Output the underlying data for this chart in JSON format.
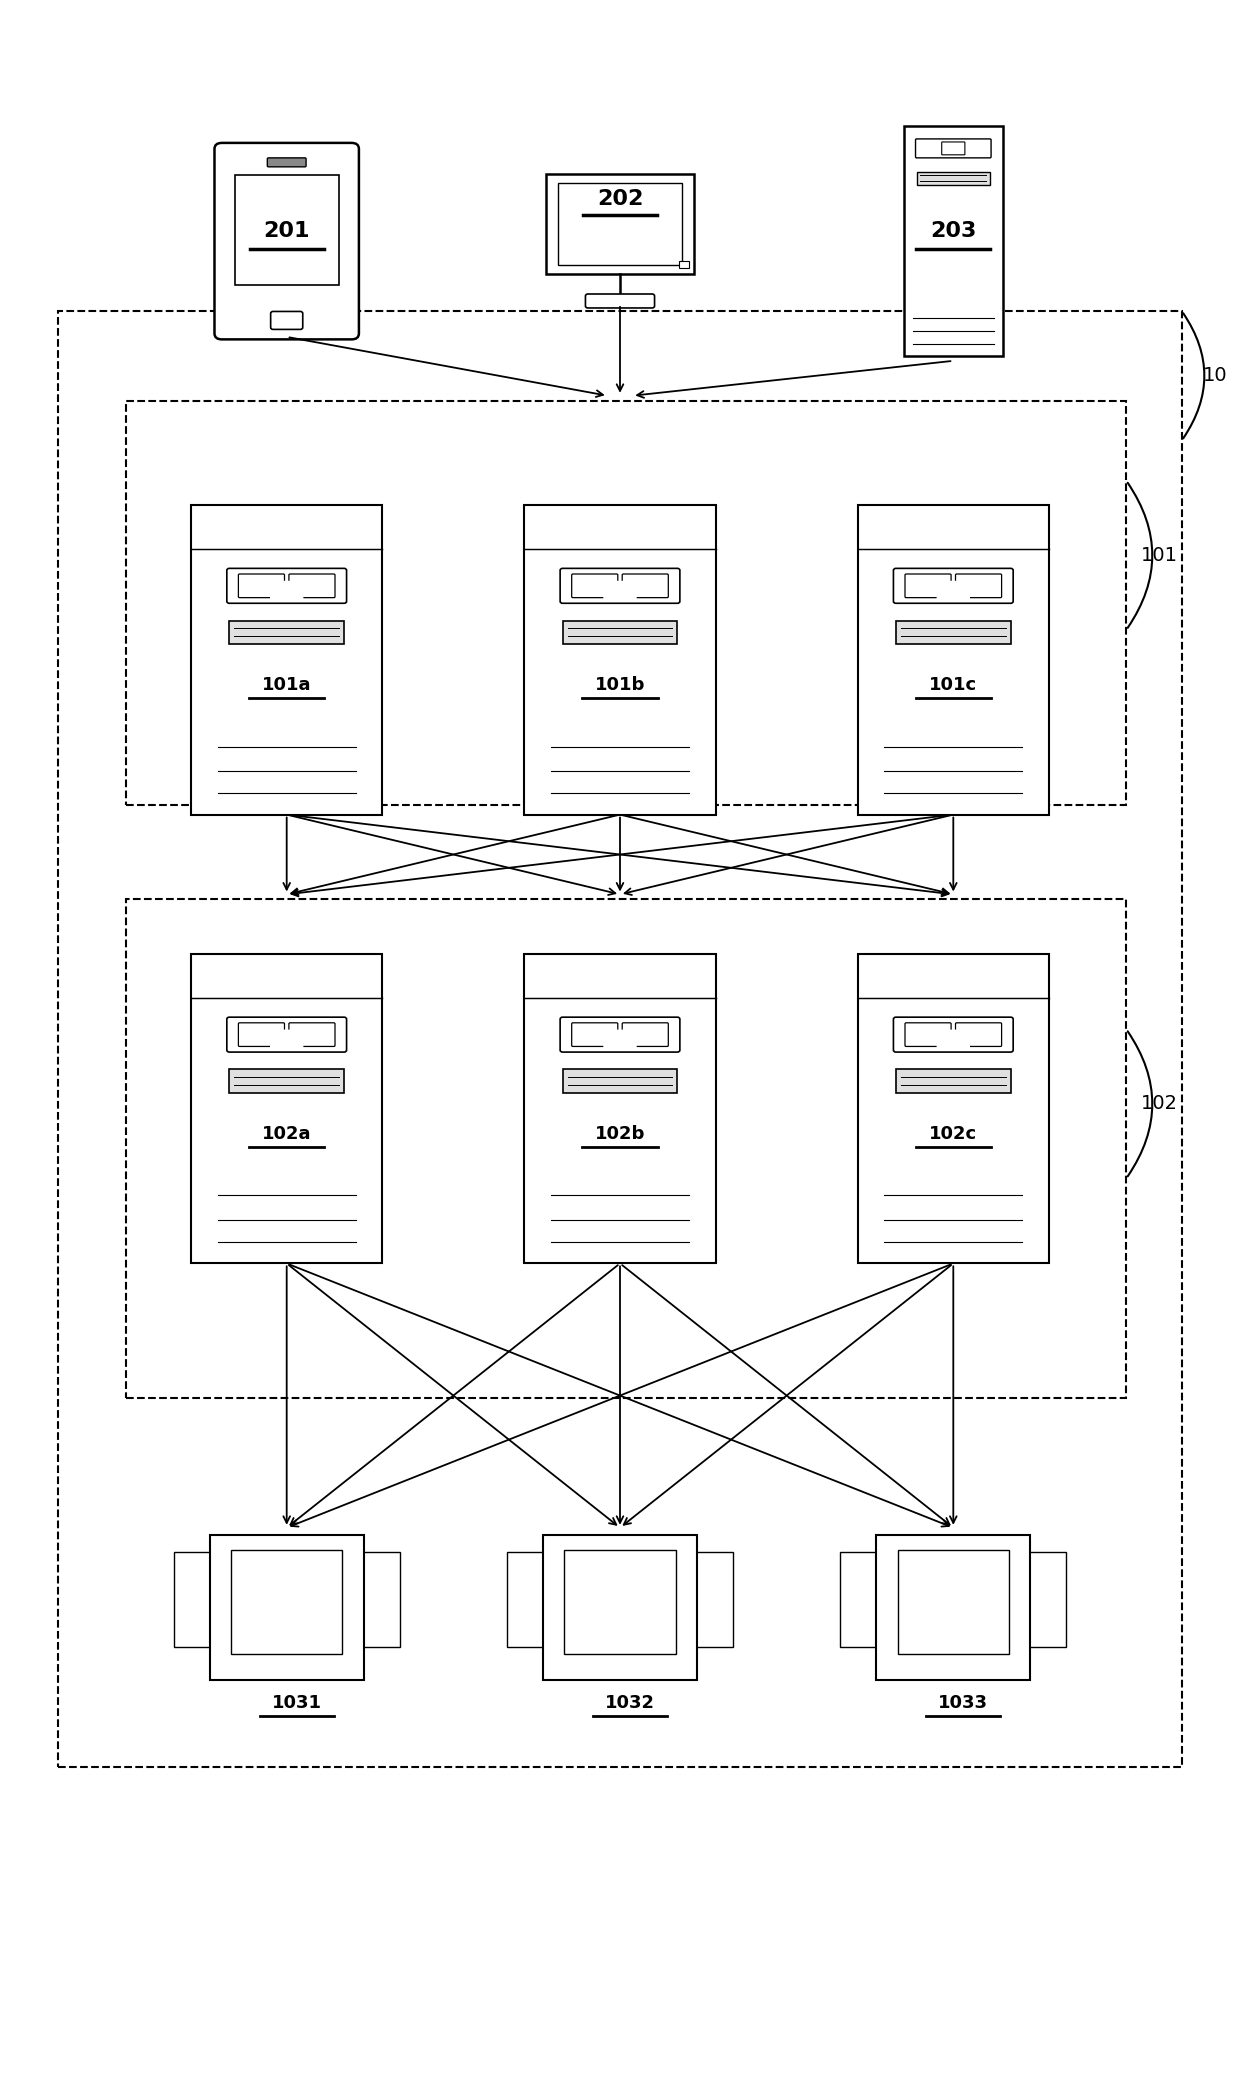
{
  "bg_color": "#ffffff",
  "line_color": "#000000",
  "fig_width": 12.4,
  "fig_height": 20.89,
  "label_10": "10",
  "label_101": "101",
  "label_102": "102",
  "client_labels": [
    "201",
    "202",
    "203"
  ],
  "server1_labels": [
    "101a",
    "101b",
    "101c"
  ],
  "server2_labels": [
    "102a",
    "102b",
    "102c"
  ],
  "db_labels": [
    "1031",
    "1032",
    "1033"
  ]
}
